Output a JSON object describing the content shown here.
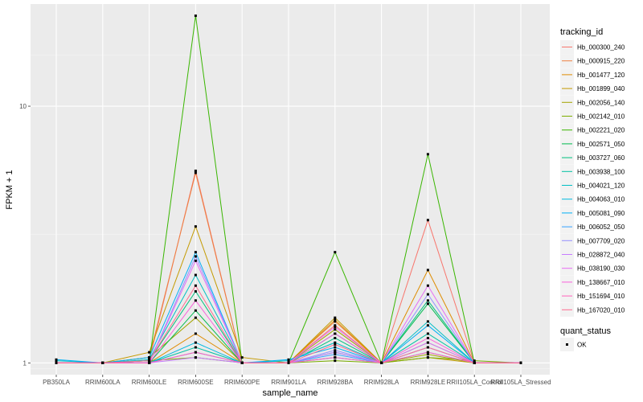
{
  "chart_data": {
    "type": "line",
    "title": "",
    "xlabel": "sample_name",
    "ylabel": "FPKM + 1",
    "yscale": "log10",
    "ylim": [
      0.9,
      25
    ],
    "yticks": [
      1,
      10
    ],
    "yticklabels": [
      "1",
      "10"
    ],
    "categories": [
      "PB350LA",
      "RRIM600LA",
      "RRIM600LE",
      "RRIM600SE",
      "RRIM600PE",
      "RRIM901LA",
      "RRIM928BA",
      "RRIM928LA",
      "RRIM928LE",
      "RRII105LA_Control",
      "RRII105LA_Stressed"
    ],
    "legend": {
      "title": "tracking_id",
      "position": "right"
    },
    "shape_legend": {
      "title": "quant_status",
      "entries": [
        "OK"
      ]
    },
    "series": [
      {
        "name": "Hb_000300_240",
        "color": "#F8766D",
        "values": [
          1.0,
          1.0,
          1.02,
          5.6,
          1.0,
          1.0,
          1.4,
          1.0,
          3.6,
          1.0,
          1.0
        ]
      },
      {
        "name": "Hb_000915_220",
        "color": "#EE8042",
        "values": [
          1.0,
          1.0,
          1.05,
          5.5,
          1.0,
          1.0,
          1.45,
          1.0,
          1.2,
          1.0,
          1.0
        ]
      },
      {
        "name": "Hb_001477_120",
        "color": "#DE8C00",
        "values": [
          1.0,
          1.0,
          1.0,
          1.3,
          1.0,
          1.0,
          1.47,
          1.0,
          2.3,
          1.0,
          1.0
        ]
      },
      {
        "name": "Hb_001899_040",
        "color": "#C49A00",
        "values": [
          1.0,
          1.0,
          1.1,
          3.4,
          1.05,
          1.0,
          1.5,
          1.0,
          1.05,
          1.0,
          1.0
        ]
      },
      {
        "name": "Hb_002056_140",
        "color": "#A3A500",
        "values": [
          1.0,
          1.0,
          1.05,
          1.5,
          1.0,
          1.0,
          1.35,
          1.0,
          1.08,
          1.0,
          1.0
        ]
      },
      {
        "name": "Hb_002142_010",
        "color": "#7CAE00",
        "values": [
          1.0,
          1.0,
          1.02,
          1.05,
          1.0,
          1.0,
          1.02,
          1.0,
          1.05,
          1.02,
          1.0
        ]
      },
      {
        "name": "Hb_002221_020",
        "color": "#39B600",
        "values": [
          1.0,
          1.0,
          1.0,
          22.5,
          1.0,
          1.0,
          2.7,
          1.0,
          6.5,
          1.0,
          1.0
        ]
      },
      {
        "name": "Hb_002571_050",
        "color": "#00BB4E",
        "values": [
          1.0,
          1.0,
          1.0,
          1.6,
          1.0,
          1.0,
          1.3,
          1.0,
          1.7,
          1.0,
          1.0
        ]
      },
      {
        "name": "Hb_003727_060",
        "color": "#00BF7D",
        "values": [
          1.0,
          1.0,
          1.02,
          1.9,
          1.0,
          1.0,
          1.25,
          1.0,
          1.75,
          1.0,
          1.0
        ]
      },
      {
        "name": "Hb_003938_100",
        "color": "#00C1A3",
        "values": [
          1.0,
          1.0,
          1.0,
          1.15,
          1.0,
          1.0,
          1.1,
          1.0,
          1.3,
          1.0,
          1.0
        ]
      },
      {
        "name": "Hb_004021_120",
        "color": "#00BFC4",
        "values": [
          1.02,
          1.0,
          1.03,
          2.2,
          1.0,
          1.02,
          1.2,
          1.0,
          1.45,
          1.0,
          1.0
        ]
      },
      {
        "name": "Hb_004063_010",
        "color": "#00BAE0",
        "values": [
          1.0,
          1.0,
          1.0,
          1.2,
          1.0,
          1.0,
          1.05,
          1.0,
          1.1,
          1.0,
          1.0
        ]
      },
      {
        "name": "Hb_005081_090",
        "color": "#00B0F6",
        "values": [
          1.03,
          1.0,
          1.05,
          2.7,
          1.0,
          1.03,
          1.15,
          1.0,
          1.4,
          1.0,
          1.0
        ]
      },
      {
        "name": "Hb_006052_050",
        "color": "#35A2FF",
        "values": [
          1.0,
          1.0,
          1.0,
          1.1,
          1.0,
          1.0,
          1.08,
          1.0,
          1.15,
          1.0,
          1.0
        ]
      },
      {
        "name": "Hb_007709_020",
        "color": "#9590FF",
        "values": [
          1.0,
          1.0,
          1.0,
          2.6,
          1.0,
          1.0,
          1.12,
          1.0,
          1.85,
          1.0,
          1.0
        ]
      },
      {
        "name": "Hb_028872_040",
        "color": "#C77CFF",
        "values": [
          1.0,
          1.0,
          1.0,
          1.05,
          1.0,
          1.0,
          1.1,
          1.0,
          1.2,
          1.0,
          1.0
        ]
      },
      {
        "name": "Hb_038190_030",
        "color": "#E76BF3",
        "values": [
          1.0,
          1.0,
          1.0,
          2.5,
          1.0,
          1.0,
          1.38,
          1.0,
          2.0,
          1.0,
          1.0
        ]
      },
      {
        "name": "Hb_138667_010",
        "color": "#FA62DB",
        "values": [
          1.0,
          1.0,
          1.0,
          1.75,
          1.0,
          1.0,
          1.3,
          1.0,
          1.25,
          1.0,
          1.0
        ]
      },
      {
        "name": "Hb_151694_010",
        "color": "#FF62BC",
        "values": [
          1.0,
          1.0,
          1.0,
          1.1,
          1.0,
          1.0,
          1.05,
          1.0,
          1.1,
          1.0,
          1.0
        ]
      },
      {
        "name": "Hb_167020_010",
        "color": "#FF6C91",
        "values": [
          1.0,
          1.0,
          1.02,
          2.0,
          1.0,
          1.0,
          1.18,
          1.0,
          1.15,
          1.0,
          1.0
        ]
      }
    ]
  }
}
